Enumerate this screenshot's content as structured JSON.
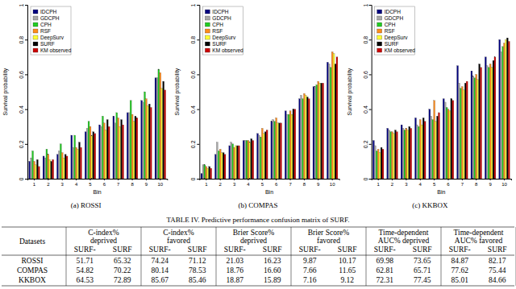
{
  "chart_data": [
    {
      "type": "bar",
      "title": "(a) ROSSI",
      "x_label": "Bin",
      "y_label": "Survival probability",
      "categories": [
        "1",
        "2",
        "3",
        "4",
        "5",
        "6",
        "7",
        "8",
        "9",
        "10"
      ],
      "series": [
        {
          "name": "IDCPH",
          "color": "#000080",
          "values": [
            0.1,
            0.13,
            0.14,
            0.25,
            0.27,
            0.31,
            0.36,
            0.38,
            0.45,
            0.58
          ]
        },
        {
          "name": "GDCPH",
          "color": "#a9a9a9",
          "values": [
            0.12,
            0.12,
            0.16,
            0.18,
            0.29,
            0.3,
            0.32,
            0.38,
            0.44,
            0.58
          ]
        },
        {
          "name": "CPH",
          "color": "#22cc22",
          "values": [
            0.16,
            0.17,
            0.2,
            0.25,
            0.33,
            0.36,
            0.38,
            0.45,
            0.5,
            0.63
          ]
        },
        {
          "name": "RSF",
          "color": "#ff8c1a",
          "values": [
            0.1,
            0.14,
            0.15,
            0.18,
            0.3,
            0.32,
            0.35,
            0.37,
            0.46,
            0.61
          ]
        },
        {
          "name": "DeepSurv",
          "color": "#ffff33",
          "values": [
            0.08,
            0.11,
            0.12,
            0.17,
            0.25,
            0.28,
            0.3,
            0.33,
            0.42,
            0.52
          ]
        },
        {
          "name": "SURF",
          "color": "#000000",
          "values": [
            0.11,
            0.1,
            0.14,
            0.21,
            0.27,
            0.34,
            0.34,
            0.36,
            0.43,
            0.56
          ]
        },
        {
          "name": "KM observed",
          "color": "#cc0000",
          "values": [
            0.07,
            0.11,
            0.13,
            0.18,
            0.26,
            0.3,
            0.31,
            0.35,
            0.41,
            0.51
          ]
        }
      ],
      "ylim": [
        0,
        1
      ],
      "yticks": [
        0,
        0.2,
        0.4,
        0.6,
        0.8,
        1
      ],
      "legend": "top-left"
    },
    {
      "type": "bar",
      "title": "(b) COMPAS",
      "x_label": "Bin",
      "y_label": "Survival probability",
      "categories": [
        "1",
        "2",
        "3",
        "4",
        "5",
        "6",
        "7",
        "8",
        "9",
        "10"
      ],
      "series": [
        {
          "name": "IDCPH",
          "color": "#000080",
          "values": [
            0.03,
            0.14,
            0.19,
            0.22,
            0.26,
            0.33,
            0.39,
            0.46,
            0.53,
            0.67
          ]
        },
        {
          "name": "GDCPH",
          "color": "#a9a9a9",
          "values": [
            0.08,
            0.21,
            0.21,
            0.22,
            0.25,
            0.34,
            0.37,
            0.48,
            0.53,
            0.66
          ]
        },
        {
          "name": "CPH",
          "color": "#22cc22",
          "values": [
            0.08,
            0.16,
            0.2,
            0.22,
            0.24,
            0.33,
            0.37,
            0.46,
            0.54,
            0.64
          ]
        },
        {
          "name": "RSF",
          "color": "#ff8c1a",
          "values": [
            0.07,
            0.17,
            0.18,
            0.22,
            0.29,
            0.35,
            0.39,
            0.49,
            0.56,
            0.73
          ]
        },
        {
          "name": "DeepSurv",
          "color": "#ffff33",
          "values": [
            0.06,
            0.15,
            0.19,
            0.21,
            0.26,
            0.32,
            0.37,
            0.48,
            0.55,
            0.72
          ]
        },
        {
          "name": "SURF",
          "color": "#000000",
          "values": [
            0.07,
            0.15,
            0.19,
            0.23,
            0.27,
            0.32,
            0.4,
            0.47,
            0.55,
            0.66
          ]
        },
        {
          "name": "KM observed",
          "color": "#cc0000",
          "values": [
            0.06,
            0.14,
            0.19,
            0.22,
            0.28,
            0.32,
            0.4,
            0.46,
            0.55,
            0.7
          ]
        }
      ],
      "ylim": [
        0,
        1
      ],
      "yticks": [
        0,
        0.2,
        0.4,
        0.6,
        0.8,
        1
      ],
      "legend": "top-left"
    },
    {
      "type": "bar",
      "title": "(c) KKBOX",
      "x_label": "Bin",
      "y_label": "Survival probability",
      "categories": [
        "1",
        "2",
        "3",
        "4",
        "5",
        "6",
        "7",
        "8",
        "9",
        "10"
      ],
      "series": [
        {
          "name": "IDCPH",
          "color": "#000080",
          "values": [
            0.22,
            0.29,
            0.31,
            0.35,
            0.4,
            0.46,
            0.65,
            0.62,
            0.7,
            0.8
          ]
        },
        {
          "name": "GDCPH",
          "color": "#a9a9a9",
          "values": [
            0.19,
            0.28,
            0.29,
            0.31,
            0.36,
            0.44,
            0.55,
            0.59,
            0.65,
            0.73
          ]
        },
        {
          "name": "CPH",
          "color": "#22cc22",
          "values": [
            0.16,
            0.27,
            0.28,
            0.3,
            0.34,
            0.41,
            0.52,
            0.58,
            0.64,
            0.76
          ]
        },
        {
          "name": "RSF",
          "color": "#ff8c1a",
          "values": [
            0.17,
            0.27,
            0.29,
            0.34,
            0.45,
            0.4,
            0.53,
            0.6,
            0.66,
            0.78
          ]
        },
        {
          "name": "DeepSurv",
          "color": "#ffff33",
          "values": [
            0.15,
            0.26,
            0.28,
            0.31,
            0.33,
            0.39,
            0.51,
            0.57,
            0.64,
            0.8
          ]
        },
        {
          "name": "SURF",
          "color": "#000000",
          "values": [
            0.18,
            0.28,
            0.3,
            0.35,
            0.36,
            0.46,
            0.55,
            0.66,
            0.68,
            0.81
          ]
        },
        {
          "name": "KM observed",
          "color": "#cc0000",
          "values": [
            0.17,
            0.27,
            0.29,
            0.33,
            0.38,
            0.45,
            0.56,
            0.64,
            0.7,
            0.79
          ]
        }
      ],
      "ylim": [
        0,
        1
      ],
      "yticks": [
        0,
        0.2,
        0.4,
        0.6,
        0.8,
        1
      ],
      "legend": "top-left"
    }
  ],
  "table": {
    "caption": "TABLE IV. Predictive performance confusion matrix of SURF.",
    "header": "Datasets",
    "groups": [
      [
        "C-index%",
        "deprived"
      ],
      [
        "C-index%",
        "favored"
      ],
      [
        "Brier Score%",
        "deprived"
      ],
      [
        "Brier Score%",
        "favored"
      ],
      [
        "Time-dependent",
        "AUC% deprived"
      ],
      [
        "Time-dependent",
        "AUC% favored"
      ]
    ],
    "subheaders": [
      "SURF-",
      "SURF"
    ],
    "rows": [
      [
        "ROSSI",
        "51.71",
        "65.32",
        "74.24",
        "71.12",
        "21.03",
        "16.23",
        "9.87",
        "10.17",
        "69.98",
        "73.65",
        "84.87",
        "82.17"
      ],
      [
        "COMPAS",
        "54.82",
        "70.22",
        "80.14",
        "78.53",
        "18.76",
        "16.60",
        "7.66",
        "11.65",
        "62.81",
        "65.71",
        "77.62",
        "75.44"
      ],
      [
        "KKBOX",
        "64.53",
        "72.89",
        "85.67",
        "85.46",
        "18.87",
        "15.89",
        "7.16",
        "9.12",
        "72.31",
        "77.45",
        "85.01",
        "84.66"
      ]
    ]
  }
}
